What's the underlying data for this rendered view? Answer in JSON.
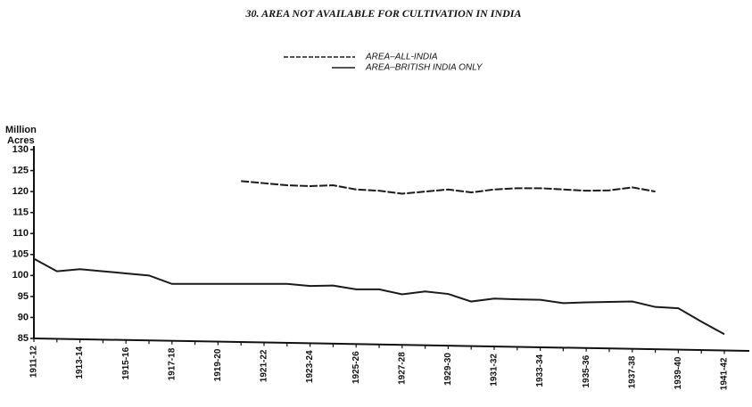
{
  "chart_data": {
    "type": "line",
    "title": "30. AREA NOT AVAILABLE FOR CULTIVATION IN INDIA",
    "ylabel": [
      "Million",
      "Acres"
    ],
    "categories": [
      "1911-12",
      null,
      "1913-14",
      null,
      "1915-16",
      null,
      "1917-18",
      null,
      "1919-20",
      null,
      "1921-22",
      null,
      "1923-24",
      null,
      "1925-26",
      null,
      "1927-28",
      null,
      "1929-30",
      null,
      "1931-32",
      null,
      "1933-34",
      null,
      "1935-36",
      null,
      "1937-38",
      null,
      "1939-40",
      null,
      "1941-42"
    ],
    "series": [
      {
        "name": "AREA–ALL-INDIA",
        "color": "#1a1a1a",
        "line_style": "dashed",
        "values": [
          null,
          null,
          null,
          null,
          null,
          null,
          null,
          null,
          null,
          122.5,
          122,
          121.5,
          121.3,
          121.5,
          120.5,
          120.2,
          119.5,
          120,
          120.5,
          119.8,
          120.5,
          120.8,
          120.8,
          120.5,
          120.2,
          120.3,
          121,
          120,
          null,
          null,
          null
        ]
      },
      {
        "name": "AREA–BRITISH INDIA ONLY",
        "color": "#1a1a1a",
        "line_style": "solid",
        "values": [
          104,
          101,
          101.5,
          101,
          100.5,
          100,
          98,
          98,
          98,
          98,
          98,
          98,
          97.5,
          97.6,
          96.7,
          96.7,
          95.5,
          96.2,
          95.6,
          93.8,
          94.5,
          94.3,
          94.2,
          93.4,
          93.6,
          93.7,
          93.8,
          92.5,
          92.2,
          89,
          86
        ]
      }
    ],
    "ylim": [
      85,
      130
    ],
    "yticks": [
      85,
      90,
      95,
      100,
      105,
      110,
      115,
      120,
      125,
      130
    ]
  }
}
